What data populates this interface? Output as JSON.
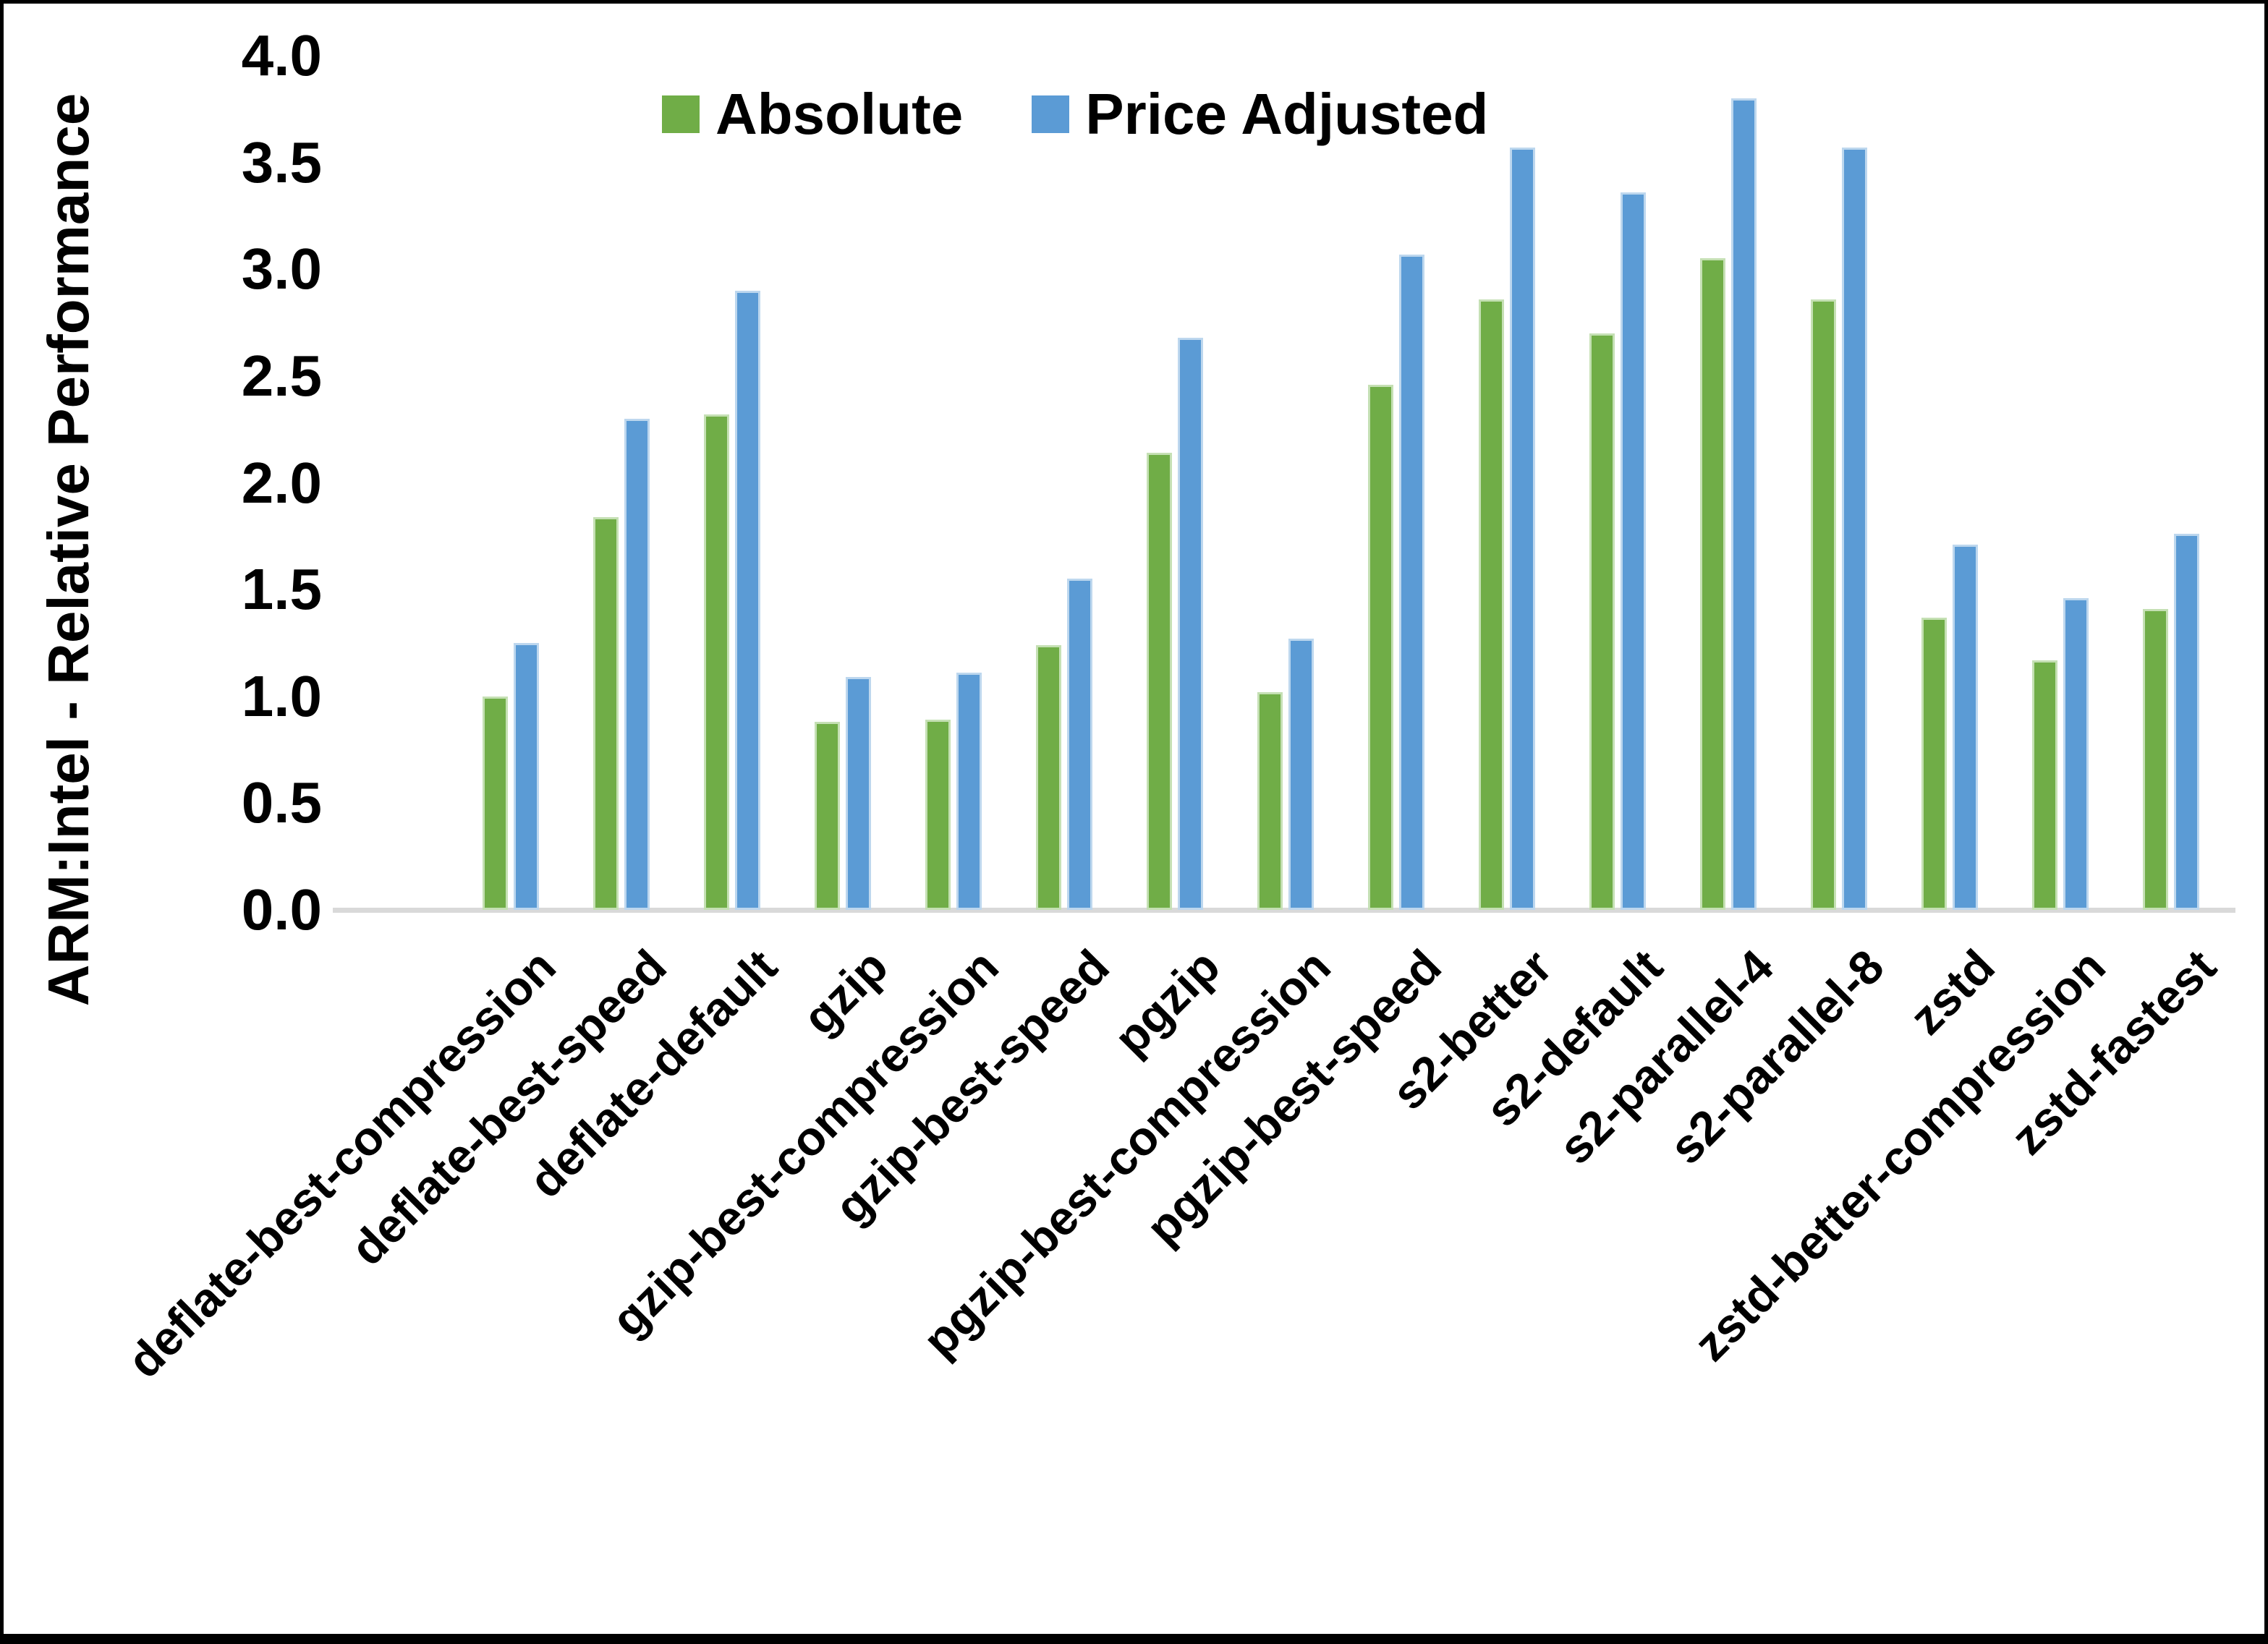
{
  "chart_data": {
    "type": "bar",
    "title": "",
    "xlabel": "",
    "ylabel": "ARM:Intel - Relative Performance",
    "ylim": [
      0.0,
      4.0
    ],
    "ytick_step": 0.5,
    "yticks": [
      "0.0",
      "0.5",
      "1.0",
      "1.5",
      "2.0",
      "2.5",
      "3.0",
      "3.5",
      "4.0"
    ],
    "grid": false,
    "legend_position": "top",
    "categories": [
      "deflate-best-compression",
      "deflate-best-speed",
      "deflate-default",
      "gzip",
      "gzip-best-compression",
      "gzip-best-speed",
      "pgzip",
      "pgzip-best-compression",
      "pgzip-best-speed",
      "s2-better",
      "s2-default",
      "s2-parallel-4",
      "s2-parallel-8",
      "zstd",
      "zstd-better-compression",
      "zstd-fastest"
    ],
    "series": [
      {
        "name": "Absolute",
        "color": "#70ad47",
        "edge_color": "#c5e0b4",
        "values": [
          1.0,
          1.84,
          2.32,
          0.88,
          0.89,
          1.24,
          2.14,
          1.02,
          2.46,
          2.86,
          2.7,
          3.05,
          2.86,
          1.37,
          1.17,
          1.41
        ]
      },
      {
        "name": "Price Adjusted",
        "color": "#5b9bd5",
        "edge_color": "#bdd7ee",
        "values": [
          1.25,
          2.3,
          2.9,
          1.09,
          1.11,
          1.55,
          2.68,
          1.27,
          3.07,
          3.57,
          3.36,
          3.8,
          3.57,
          1.71,
          1.46,
          1.76
        ]
      }
    ]
  },
  "axis_colors": {
    "baseline": "#d9d9d9",
    "text": "#000000"
  },
  "frame_color": "#000000"
}
